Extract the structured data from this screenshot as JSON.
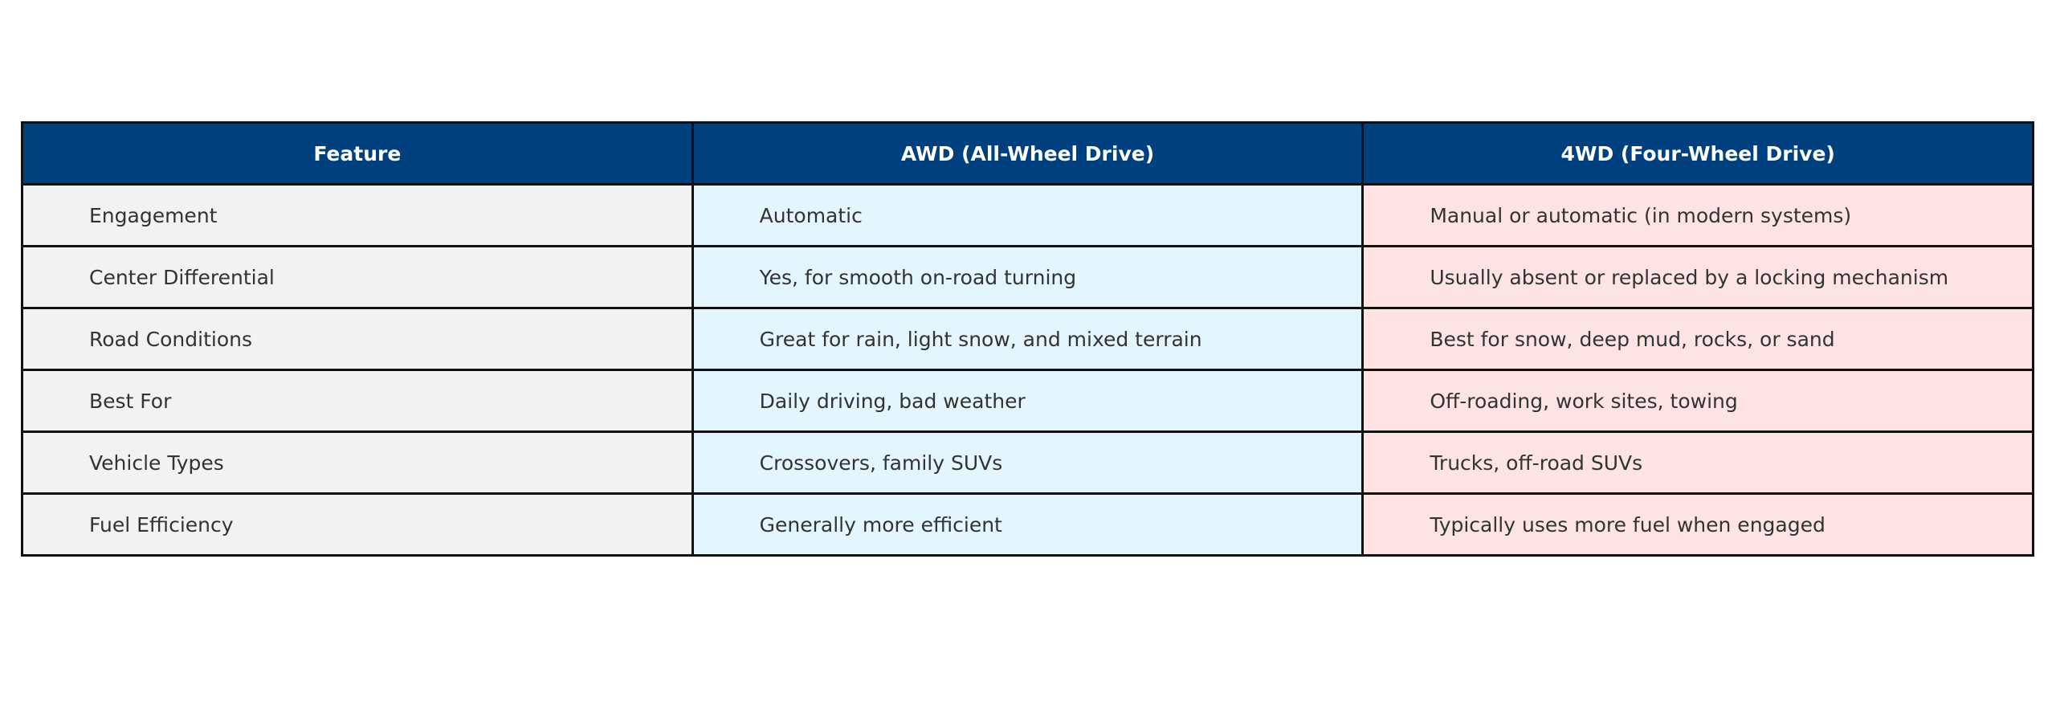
{
  "table": {
    "header": [
      "Feature",
      "AWD (All-Wheel Drive)",
      "4WD (Four-Wheel Drive)"
    ],
    "rows": [
      [
        "Engagement",
        "Automatic",
        "Manual or automatic (in modern systems)"
      ],
      [
        "Center Differential",
        "Yes, for smooth on-road turning",
        "Usually absent or replaced by a locking mechanism"
      ],
      [
        "Road Conditions",
        "Great for rain, light snow, and mixed terrain",
        "Best for snow, deep mud, rocks, or sand"
      ],
      [
        "Best For",
        "Daily driving, bad weather",
        "Off-roading, work sites, towing"
      ],
      [
        "Vehicle Types",
        "Crossovers, family SUVs",
        "Trucks, off-road SUVs"
      ],
      [
        "Fuel Efficiency",
        "Generally more efficient",
        "Typically uses more fuel when engaged"
      ]
    ]
  }
}
